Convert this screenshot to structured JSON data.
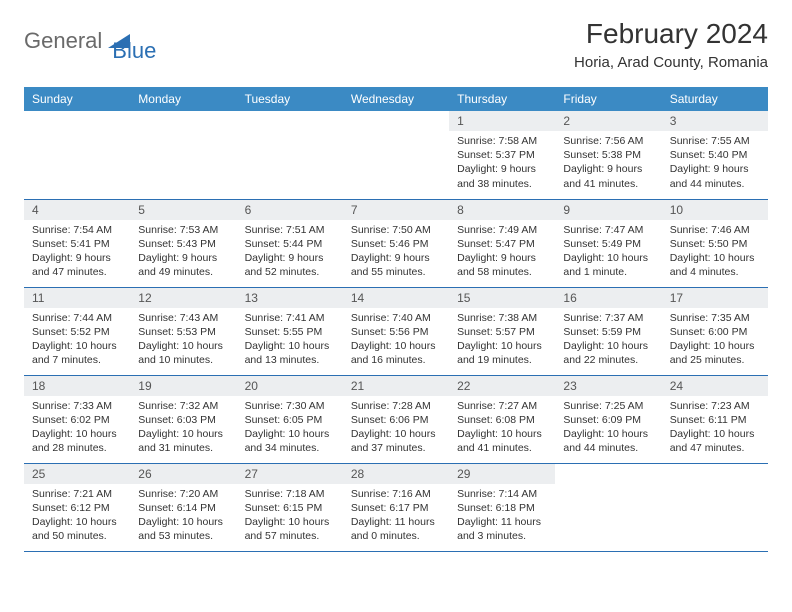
{
  "brand": {
    "part1": "General",
    "part2": "Blue"
  },
  "title": "February 2024",
  "location": "Horia, Arad County, Romania",
  "columns": [
    "Sunday",
    "Monday",
    "Tuesday",
    "Wednesday",
    "Thursday",
    "Friday",
    "Saturday"
  ],
  "colors": {
    "header_bg": "#3b8ac4",
    "header_fg": "#ffffff",
    "daynum_bg": "#eceef0",
    "border": "#2b6fb3",
    "brand_gray": "#6a6a6a",
    "brand_blue": "#2b6fb3"
  },
  "weeks": [
    [
      null,
      null,
      null,
      null,
      {
        "n": "1",
        "sunrise": "7:58 AM",
        "sunset": "5:37 PM",
        "daylight": "9 hours and 38 minutes."
      },
      {
        "n": "2",
        "sunrise": "7:56 AM",
        "sunset": "5:38 PM",
        "daylight": "9 hours and 41 minutes."
      },
      {
        "n": "3",
        "sunrise": "7:55 AM",
        "sunset": "5:40 PM",
        "daylight": "9 hours and 44 minutes."
      }
    ],
    [
      {
        "n": "4",
        "sunrise": "7:54 AM",
        "sunset": "5:41 PM",
        "daylight": "9 hours and 47 minutes."
      },
      {
        "n": "5",
        "sunrise": "7:53 AM",
        "sunset": "5:43 PM",
        "daylight": "9 hours and 49 minutes."
      },
      {
        "n": "6",
        "sunrise": "7:51 AM",
        "sunset": "5:44 PM",
        "daylight": "9 hours and 52 minutes."
      },
      {
        "n": "7",
        "sunrise": "7:50 AM",
        "sunset": "5:46 PM",
        "daylight": "9 hours and 55 minutes."
      },
      {
        "n": "8",
        "sunrise": "7:49 AM",
        "sunset": "5:47 PM",
        "daylight": "9 hours and 58 minutes."
      },
      {
        "n": "9",
        "sunrise": "7:47 AM",
        "sunset": "5:49 PM",
        "daylight": "10 hours and 1 minute."
      },
      {
        "n": "10",
        "sunrise": "7:46 AM",
        "sunset": "5:50 PM",
        "daylight": "10 hours and 4 minutes."
      }
    ],
    [
      {
        "n": "11",
        "sunrise": "7:44 AM",
        "sunset": "5:52 PM",
        "daylight": "10 hours and 7 minutes."
      },
      {
        "n": "12",
        "sunrise": "7:43 AM",
        "sunset": "5:53 PM",
        "daylight": "10 hours and 10 minutes."
      },
      {
        "n": "13",
        "sunrise": "7:41 AM",
        "sunset": "5:55 PM",
        "daylight": "10 hours and 13 minutes."
      },
      {
        "n": "14",
        "sunrise": "7:40 AM",
        "sunset": "5:56 PM",
        "daylight": "10 hours and 16 minutes."
      },
      {
        "n": "15",
        "sunrise": "7:38 AM",
        "sunset": "5:57 PM",
        "daylight": "10 hours and 19 minutes."
      },
      {
        "n": "16",
        "sunrise": "7:37 AM",
        "sunset": "5:59 PM",
        "daylight": "10 hours and 22 minutes."
      },
      {
        "n": "17",
        "sunrise": "7:35 AM",
        "sunset": "6:00 PM",
        "daylight": "10 hours and 25 minutes."
      }
    ],
    [
      {
        "n": "18",
        "sunrise": "7:33 AM",
        "sunset": "6:02 PM",
        "daylight": "10 hours and 28 minutes."
      },
      {
        "n": "19",
        "sunrise": "7:32 AM",
        "sunset": "6:03 PM",
        "daylight": "10 hours and 31 minutes."
      },
      {
        "n": "20",
        "sunrise": "7:30 AM",
        "sunset": "6:05 PM",
        "daylight": "10 hours and 34 minutes."
      },
      {
        "n": "21",
        "sunrise": "7:28 AM",
        "sunset": "6:06 PM",
        "daylight": "10 hours and 37 minutes."
      },
      {
        "n": "22",
        "sunrise": "7:27 AM",
        "sunset": "6:08 PM",
        "daylight": "10 hours and 41 minutes."
      },
      {
        "n": "23",
        "sunrise": "7:25 AM",
        "sunset": "6:09 PM",
        "daylight": "10 hours and 44 minutes."
      },
      {
        "n": "24",
        "sunrise": "7:23 AM",
        "sunset": "6:11 PM",
        "daylight": "10 hours and 47 minutes."
      }
    ],
    [
      {
        "n": "25",
        "sunrise": "7:21 AM",
        "sunset": "6:12 PM",
        "daylight": "10 hours and 50 minutes."
      },
      {
        "n": "26",
        "sunrise": "7:20 AM",
        "sunset": "6:14 PM",
        "daylight": "10 hours and 53 minutes."
      },
      {
        "n": "27",
        "sunrise": "7:18 AM",
        "sunset": "6:15 PM",
        "daylight": "10 hours and 57 minutes."
      },
      {
        "n": "28",
        "sunrise": "7:16 AM",
        "sunset": "6:17 PM",
        "daylight": "11 hours and 0 minutes."
      },
      {
        "n": "29",
        "sunrise": "7:14 AM",
        "sunset": "6:18 PM",
        "daylight": "11 hours and 3 minutes."
      },
      null,
      null
    ]
  ]
}
